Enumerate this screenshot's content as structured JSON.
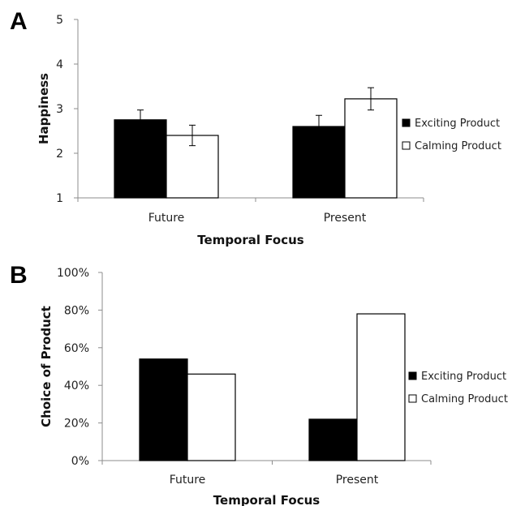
{
  "chart_data": [
    {
      "panel": "A",
      "type": "bar",
      "categories": [
        "Future",
        "Present"
      ],
      "series": [
        {
          "name": "Exciting Product",
          "values": [
            2.75,
            2.6
          ],
          "errors": [
            0.22,
            0.25
          ]
        },
        {
          "name": "Calming Product",
          "values": [
            2.4,
            3.22
          ],
          "errors": [
            0.23,
            0.25
          ]
        }
      ],
      "xlabel": "Temporal Focus",
      "ylabel": "Happiness",
      "ylim": [
        1,
        5
      ],
      "yticks": [
        "1",
        "2",
        "3",
        "4",
        "5"
      ],
      "legend": "right",
      "grid": false
    },
    {
      "panel": "B",
      "type": "bar",
      "categories": [
        "Future",
        "Present"
      ],
      "series": [
        {
          "name": "Exciting Product",
          "values": [
            54,
            22
          ]
        },
        {
          "name": "Calming Product",
          "values": [
            46,
            78
          ]
        }
      ],
      "xlabel": "Temporal Focus",
      "ylabel": "Choice of  Product",
      "ylim": [
        0,
        100
      ],
      "yticks": [
        "0%",
        "20%",
        "40%",
        "60%",
        "80%",
        "100%"
      ],
      "legend": "right",
      "grid": false
    }
  ],
  "colors": {
    "exciting": "#000000",
    "calming": "#ffffff",
    "axis": "#8c8c8c"
  }
}
